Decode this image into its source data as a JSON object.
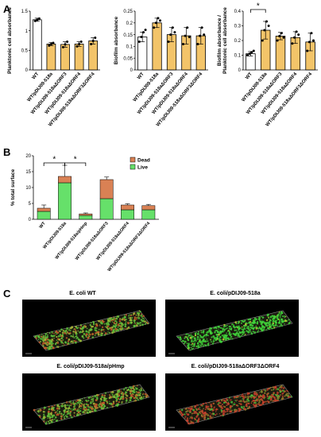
{
  "panels": {
    "a": "A",
    "b": "B",
    "c": "C"
  },
  "colors": {
    "bar_a": "#ffffff",
    "bar_b": "#f3c469",
    "bar_edge": "#000000",
    "dead": "#d98154",
    "live": "#66e06a"
  },
  "chart_data": [
    {
      "type": "bar",
      "title": "",
      "xlabel": "",
      "ylabel": "Planktonic cell absorbance",
      "ylim": [
        0,
        1.5
      ],
      "yticks": [
        0.0,
        0.5,
        1.0,
        1.5
      ],
      "categories": [
        "WT",
        "WT/pDIJ09-518a",
        "WT/pDIJ09-518aΔORF3",
        "WT/pDIJ09-518aΔORF4",
        "WT/pDIJ09-518aΔORF3ΔORF4"
      ],
      "values": [
        1.28,
        0.66,
        0.65,
        0.66,
        0.74
      ],
      "errors": [
        0.04,
        0.04,
        0.07,
        0.06,
        0.08
      ],
      "points": [
        [
          1.25,
          1.28,
          1.31
        ],
        [
          0.62,
          0.66,
          0.69
        ],
        [
          0.58,
          0.65,
          0.72
        ],
        [
          0.6,
          0.66,
          0.72
        ],
        [
          0.66,
          0.74,
          0.82
        ]
      ],
      "bar_colors": [
        "#ffffff",
        "#f3c469",
        "#f3c469",
        "#f3c469",
        "#f3c469"
      ]
    },
    {
      "type": "bar",
      "title": "",
      "xlabel": "",
      "ylabel": "Biofilm absorbance",
      "ylim": [
        0,
        0.25
      ],
      "yticks": [
        0.0,
        0.05,
        0.1,
        0.15,
        0.2,
        0.25
      ],
      "categories": [
        "WT",
        "WT/pDIJ09-518a",
        "WT/pDIJ09-518aΔORF3",
        "WT/pDIJ09-518aΔORF4",
        "WT/pDIJ09-518aΔORF3ΔORF4"
      ],
      "values": [
        0.14,
        0.2,
        0.15,
        0.145,
        0.145
      ],
      "errors": [
        0.02,
        0.02,
        0.03,
        0.035,
        0.035
      ],
      "points": [
        [
          0.12,
          0.14,
          0.16,
          0.17
        ],
        [
          0.18,
          0.2,
          0.22,
          0.21
        ],
        [
          0.12,
          0.15,
          0.18,
          0.16
        ],
        [
          0.11,
          0.145,
          0.18,
          0.14
        ],
        [
          0.11,
          0.145,
          0.18,
          0.15
        ]
      ],
      "bar_colors": [
        "#ffffff",
        "#f3c469",
        "#f3c469",
        "#f3c469",
        "#f3c469"
      ]
    },
    {
      "type": "bar",
      "title": "",
      "xlabel": "",
      "ylabel": "Biofilm absorbance / Planktonic cell absorbance",
      "ylim": [
        0,
        0.4
      ],
      "yticks": [
        0.0,
        0.1,
        0.2,
        0.3,
        0.4
      ],
      "categories": [
        "WT",
        "WT/pDIJ09-518a",
        "WT/pDIJ09-518aΔORF3",
        "WT/pDIJ09-518aΔORF4",
        "WT/pDIJ09-518aΔORF3ΔORF4"
      ],
      "values": [
        0.11,
        0.27,
        0.23,
        0.22,
        0.19
      ],
      "errors": [
        0.015,
        0.06,
        0.025,
        0.04,
        0.06
      ],
      "points": [
        [
          0.1,
          0.11,
          0.12,
          0.13
        ],
        [
          0.2,
          0.27,
          0.33,
          0.3
        ],
        [
          0.2,
          0.23,
          0.25,
          0.22
        ],
        [
          0.18,
          0.22,
          0.26,
          0.24
        ],
        [
          0.13,
          0.19,
          0.25,
          0.2
        ]
      ],
      "bar_colors": [
        "#ffffff",
        "#f3c469",
        "#f3c469",
        "#f3c469",
        "#f3c469"
      ],
      "annotations": [
        {
          "text": "*",
          "between": [
            0,
            1
          ]
        }
      ]
    },
    {
      "type": "bar",
      "stacked": true,
      "title": "",
      "xlabel": "",
      "ylabel": "% total surface",
      "ylim": [
        0,
        20
      ],
      "yticks": [
        0,
        5,
        10,
        15,
        20
      ],
      "categories": [
        "WT",
        "WT/pDIJ09-518a",
        "WT/pDIJ09-518a/pHmp",
        "WT/pDIJ09-518aΔORF3",
        "WT/pDIJ09-518aΔORF4",
        "WT/pDIJ09-518aΔORF3ΔORF4"
      ],
      "series": [
        {
          "name": "Live",
          "values": [
            2.5,
            11.5,
            1.2,
            6.5,
            3.0,
            3.0
          ]
        },
        {
          "name": "Dead",
          "values": [
            1.0,
            2.0,
            0.5,
            6.0,
            1.5,
            1.3
          ]
        }
      ],
      "errors": [
        1.0,
        3.5,
        0.3,
        0.8,
        0.4,
        0.4
      ],
      "legend": "top-right",
      "annotations": [
        {
          "text": "*",
          "between": [
            0,
            1
          ]
        },
        {
          "text": "*",
          "between": [
            1,
            2
          ]
        }
      ]
    }
  ],
  "micrographs": [
    {
      "title": "E. coli WT",
      "tone": "mixed"
    },
    {
      "title": "E. coli/pDIJ09-518a",
      "tone": "green"
    },
    {
      "title": "E. coli/pDIJ09-518a/pHmp",
      "tone": "mixed"
    },
    {
      "title": "E. coli/pDIJ09-518aΔORF3ΔORF4",
      "tone": "red"
    }
  ]
}
